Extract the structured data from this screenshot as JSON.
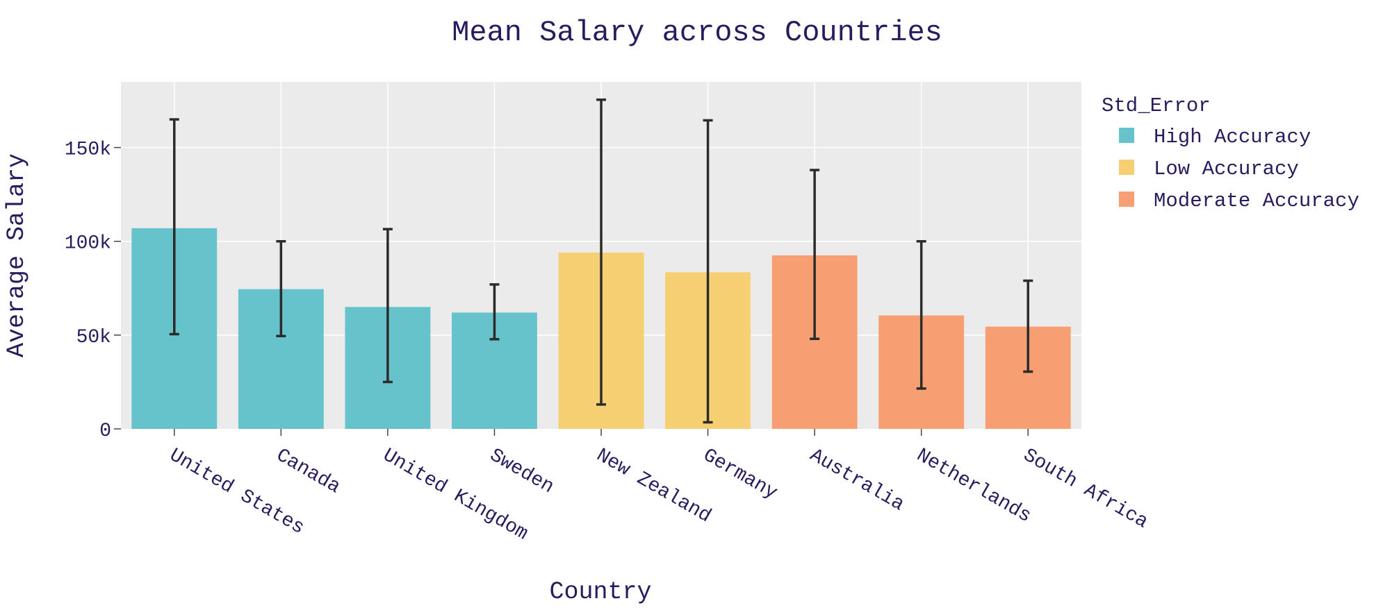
{
  "chart_data": {
    "type": "bar",
    "title": "Mean Salary across Countries",
    "xlabel": "Country",
    "ylabel": "Average Salary",
    "ylim": [
      0,
      185000
    ],
    "yticks": [
      0,
      50000,
      100000,
      150000
    ],
    "ytick_labels": [
      "0",
      "50k",
      "100k",
      "150k"
    ],
    "grid": true,
    "legend": {
      "title": "Std_Error",
      "placement": "top-right",
      "entries": [
        {
          "name": "High Accuracy",
          "color": "#66c3cc"
        },
        {
          "name": "Low Accuracy",
          "color": "#f5cf72"
        },
        {
          "name": "Moderate Accuracy",
          "color": "#f79f73"
        }
      ]
    },
    "categories": [
      "United States",
      "Canada",
      "United Kingdom",
      "Sweden",
      "New Zealand",
      "Germany",
      "Australia",
      "Netherlands",
      "South Africa"
    ],
    "values": [
      107000,
      74500,
      65000,
      62000,
      94000,
      83500,
      92500,
      60500,
      54500
    ],
    "error_low": [
      50500,
      49500,
      25000,
      47800,
      13000,
      3500,
      48000,
      21500,
      30500
    ],
    "error_high": [
      165000,
      100000,
      106500,
      77000,
      175500,
      164500,
      138000,
      100000,
      79000
    ],
    "group": [
      "High Accuracy",
      "High Accuracy",
      "High Accuracy",
      "High Accuracy",
      "Low Accuracy",
      "Low Accuracy",
      "Moderate Accuracy",
      "Moderate Accuracy",
      "Moderate Accuracy"
    ]
  }
}
